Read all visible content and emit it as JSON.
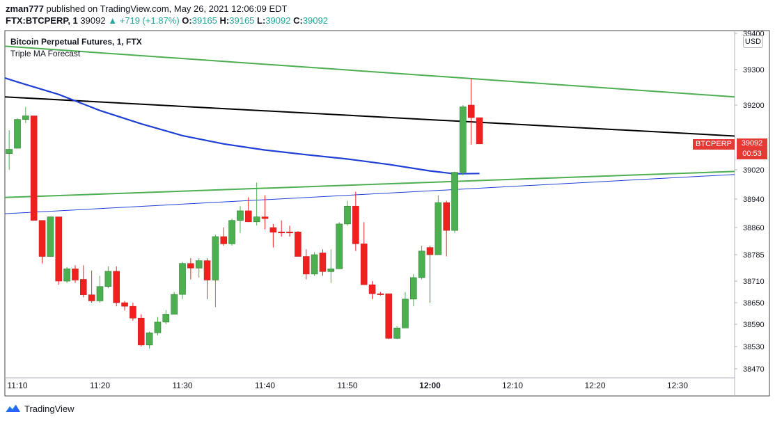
{
  "header": {
    "user": "zman777",
    "published_text": "published on TradingView.com, May 26, 2021 12:06:09 EDT",
    "symbol": "FTX:BTCPERP, 1",
    "last_price": "39092",
    "change": "▲ +719 (+1.87%)",
    "open_label": "O:",
    "open_value": "39165",
    "high_label": "H:",
    "high_value": "39165",
    "low_label": "L:",
    "low_value": "39092",
    "close_label": "C:",
    "close_value": "39092"
  },
  "legend": {
    "title": "Bitcoin Perpetual Futures, 1, FTX",
    "indicator": "Triple MA Forecast"
  },
  "price_scale": {
    "currency": "USD",
    "symbol_badge": "BTCPERP",
    "last_price": "39092",
    "countdown": "00:53"
  },
  "footer": {
    "brand": "TradingView"
  },
  "colors": {
    "up": "#4caf50",
    "down": "#f0201e",
    "ma_blue": "#1e3fd6",
    "green_line": "#4caf50",
    "black_line": "#000000",
    "badge": "#e53935"
  },
  "chart_data": {
    "type": "candlestick",
    "title": "Bitcoin Perpetual Futures, 1, FTX",
    "x_tick_labels": [
      "11:10",
      "11:20",
      "11:30",
      "11:40",
      "11:50",
      "12:00",
      "12:10",
      "12:20",
      "12:30"
    ],
    "y_tick_labels": [
      "39400",
      "39300",
      "39200",
      "39020",
      "38940",
      "38860",
      "38785",
      "38710",
      "38650",
      "38590",
      "38530",
      "38470"
    ],
    "ylim": [
      38440,
      39400
    ],
    "candles": [
      {
        "t": "11:08",
        "o": 39065,
        "h": 39110,
        "l": 38985,
        "c": 39065
      },
      {
        "t": "11:09",
        "o": 39065,
        "h": 39130,
        "l": 39020,
        "c": 39077
      },
      {
        "t": "11:10",
        "o": 39080,
        "h": 39163,
        "l": 39080,
        "c": 39160
      },
      {
        "t": "11:11",
        "o": 39160,
        "h": 39195,
        "l": 39150,
        "c": 39170
      },
      {
        "t": "11:12",
        "o": 39170,
        "h": 39170,
        "l": 38880,
        "c": 38880
      },
      {
        "t": "11:13",
        "o": 38880,
        "h": 38880,
        "l": 38760,
        "c": 38780
      },
      {
        "t": "11:14",
        "o": 38780,
        "h": 38890,
        "l": 38780,
        "c": 38890
      },
      {
        "t": "11:15",
        "o": 38890,
        "h": 38890,
        "l": 38700,
        "c": 38710
      },
      {
        "t": "11:16",
        "o": 38710,
        "h": 38750,
        "l": 38705,
        "c": 38745
      },
      {
        "t": "11:17",
        "o": 38745,
        "h": 38755,
        "l": 38705,
        "c": 38713
      },
      {
        "t": "11:18",
        "o": 38715,
        "h": 38755,
        "l": 38665,
        "c": 38672
      },
      {
        "t": "11:19",
        "o": 38672,
        "h": 38740,
        "l": 38650,
        "c": 38655
      },
      {
        "t": "11:20",
        "o": 38655,
        "h": 38725,
        "l": 38650,
        "c": 38695
      },
      {
        "t": "11:21",
        "o": 38695,
        "h": 38752,
        "l": 38690,
        "c": 38738
      },
      {
        "t": "11:22",
        "o": 38738,
        "h": 38752,
        "l": 38640,
        "c": 38650
      },
      {
        "t": "11:23",
        "o": 38650,
        "h": 38655,
        "l": 38628,
        "c": 38640
      },
      {
        "t": "11:24",
        "o": 38640,
        "h": 38650,
        "l": 38600,
        "c": 38607
      },
      {
        "t": "11:25",
        "o": 38607,
        "h": 38618,
        "l": 38530,
        "c": 38534
      },
      {
        "t": "11:26",
        "o": 38534,
        "h": 38570,
        "l": 38525,
        "c": 38567
      },
      {
        "t": "11:27",
        "o": 38567,
        "h": 38610,
        "l": 38560,
        "c": 38596
      },
      {
        "t": "11:28",
        "o": 38596,
        "h": 38630,
        "l": 38590,
        "c": 38618
      },
      {
        "t": "11:29",
        "o": 38618,
        "h": 38680,
        "l": 38618,
        "c": 38673
      },
      {
        "t": "11:30",
        "o": 38673,
        "h": 38765,
        "l": 38660,
        "c": 38760
      },
      {
        "t": "11:31",
        "o": 38760,
        "h": 38775,
        "l": 38715,
        "c": 38747
      },
      {
        "t": "11:32",
        "o": 38747,
        "h": 38775,
        "l": 38720,
        "c": 38768
      },
      {
        "t": "11:33",
        "o": 38768,
        "h": 38775,
        "l": 38660,
        "c": 38713
      },
      {
        "t": "11:34",
        "o": 38713,
        "h": 38840,
        "l": 38638,
        "c": 38835
      },
      {
        "t": "11:35",
        "o": 38835,
        "h": 38860,
        "l": 38810,
        "c": 38815
      },
      {
        "t": "11:36",
        "o": 38815,
        "h": 38885,
        "l": 38810,
        "c": 38880
      },
      {
        "t": "11:37",
        "o": 38880,
        "h": 38920,
        "l": 38845,
        "c": 38907
      },
      {
        "t": "11:38",
        "o": 38907,
        "h": 38945,
        "l": 38875,
        "c": 38876
      },
      {
        "t": "11:39",
        "o": 38876,
        "h": 38985,
        "l": 38866,
        "c": 38890
      },
      {
        "t": "11:40",
        "o": 38890,
        "h": 38950,
        "l": 38855,
        "c": 38885
      },
      {
        "t": "11:41",
        "o": 38860,
        "h": 38870,
        "l": 38805,
        "c": 38847
      },
      {
        "t": "11:42",
        "o": 38848,
        "h": 38880,
        "l": 38835,
        "c": 38845
      },
      {
        "t": "11:43",
        "o": 38848,
        "h": 38865,
        "l": 38835,
        "c": 38845
      },
      {
        "t": "11:44",
        "o": 38848,
        "h": 38850,
        "l": 38780,
        "c": 38780
      },
      {
        "t": "11:45",
        "o": 38780,
        "h": 38800,
        "l": 38715,
        "c": 38730
      },
      {
        "t": "11:46",
        "o": 38730,
        "h": 38792,
        "l": 38725,
        "c": 38785
      },
      {
        "t": "11:47",
        "o": 38790,
        "h": 38800,
        "l": 38725,
        "c": 38737
      },
      {
        "t": "11:48",
        "o": 38737,
        "h": 38800,
        "l": 38705,
        "c": 38745
      },
      {
        "t": "11:49",
        "o": 38745,
        "h": 38875,
        "l": 38745,
        "c": 38870
      },
      {
        "t": "11:50",
        "o": 38870,
        "h": 38935,
        "l": 38865,
        "c": 38920
      },
      {
        "t": "11:51",
        "o": 38920,
        "h": 38960,
        "l": 38795,
        "c": 38815
      },
      {
        "t": "11:52",
        "o": 38815,
        "h": 38875,
        "l": 38700,
        "c": 38700
      },
      {
        "t": "11:53",
        "o": 38700,
        "h": 38710,
        "l": 38660,
        "c": 38675
      },
      {
        "t": "11:54",
        "o": 38675,
        "h": 38680,
        "l": 38670,
        "c": 38673
      },
      {
        "t": "11:55",
        "o": 38675,
        "h": 38675,
        "l": 38550,
        "c": 38552
      },
      {
        "t": "11:56",
        "o": 38552,
        "h": 38585,
        "l": 38550,
        "c": 38580
      },
      {
        "t": "11:57",
        "o": 38580,
        "h": 38680,
        "l": 38580,
        "c": 38660
      },
      {
        "t": "11:58",
        "o": 38660,
        "h": 38730,
        "l": 38640,
        "c": 38720
      },
      {
        "t": "11:59",
        "o": 38720,
        "h": 38810,
        "l": 38715,
        "c": 38795
      },
      {
        "t": "12:00",
        "o": 38805,
        "h": 38810,
        "l": 38650,
        "c": 38785
      },
      {
        "t": "12:01",
        "o": 38785,
        "h": 38950,
        "l": 38785,
        "c": 38930
      },
      {
        "t": "12:02",
        "o": 38930,
        "h": 38935,
        "l": 38780,
        "c": 38852
      },
      {
        "t": "12:03",
        "o": 38852,
        "h": 39015,
        "l": 38845,
        "c": 39013
      },
      {
        "t": "12:04",
        "o": 39013,
        "h": 39200,
        "l": 39005,
        "c": 39195
      },
      {
        "t": "12:05",
        "o": 39200,
        "h": 39275,
        "l": 39090,
        "c": 39165
      },
      {
        "t": "12:06",
        "o": 39165,
        "h": 39165,
        "l": 39092,
        "c": 39092
      }
    ],
    "ma_curve": [
      [
        "11:08",
        39280
      ],
      [
        "11:10",
        39265
      ],
      [
        "11:15",
        39230
      ],
      [
        "11:20",
        39185
      ],
      [
        "11:25",
        39148
      ],
      [
        "11:30",
        39115
      ],
      [
        "11:35",
        39092
      ],
      [
        "11:40",
        39075
      ],
      [
        "11:45",
        39062
      ],
      [
        "11:50",
        39050
      ],
      [
        "11:55",
        39035
      ],
      [
        "12:00",
        39017
      ],
      [
        "12:03",
        39009
      ],
      [
        "12:06",
        39010
      ]
    ],
    "trend_lines": [
      {
        "color": "green",
        "from": [
          "11:07",
          39367
        ],
        "to": [
          "12:45",
          39210
        ]
      },
      {
        "color": "black",
        "from": [
          "11:07",
          39225
        ],
        "to": [
          "12:45",
          39104
        ]
      },
      {
        "color": "green",
        "from": [
          "11:07",
          38943
        ],
        "to": [
          "12:45",
          39022
        ]
      },
      {
        "color": "blue",
        "from": [
          "11:07",
          38897
        ],
        "to": [
          "12:45",
          39017
        ]
      }
    ]
  }
}
